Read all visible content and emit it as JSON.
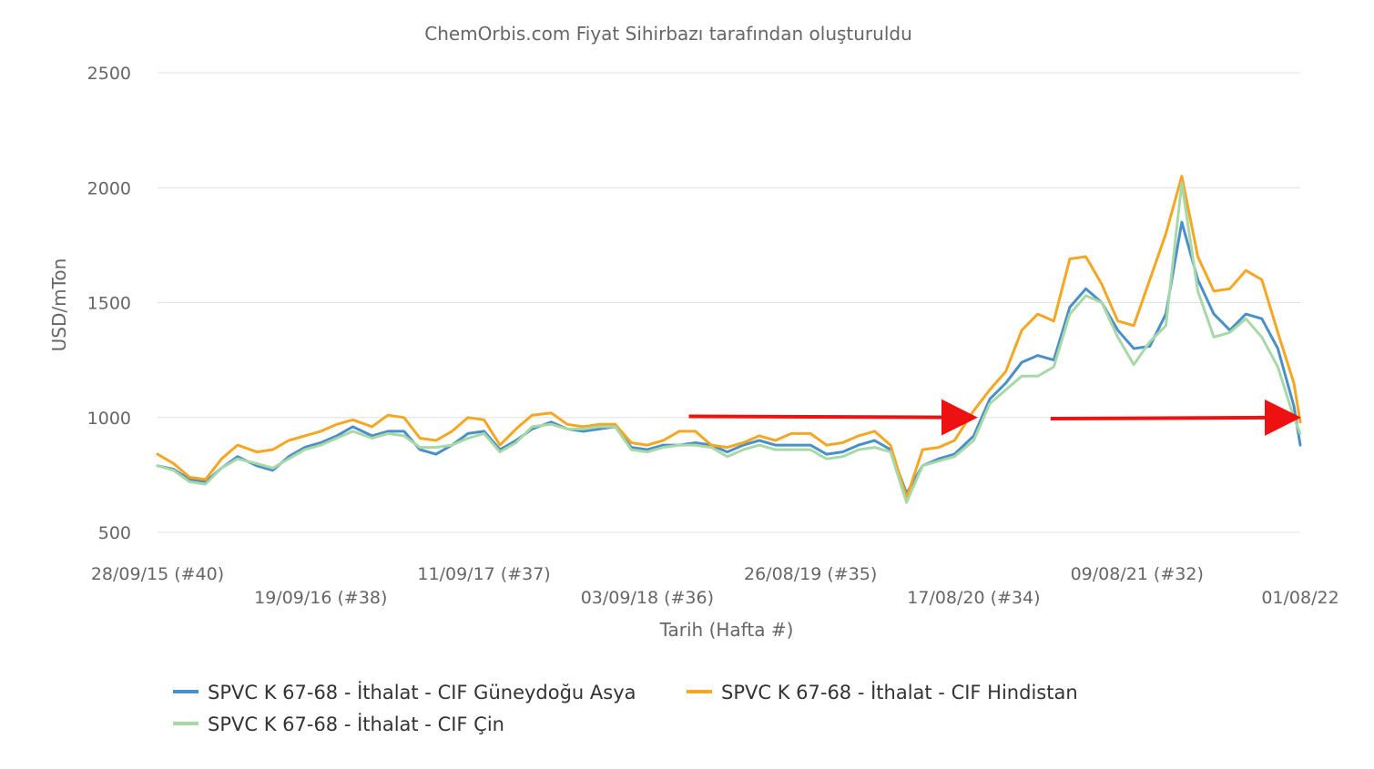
{
  "chart_data": {
    "type": "line",
    "title": "ChemOrbis.com Fiyat Sihirbazı tarafından oluşturuldu",
    "xlabel": "Tarih (Hafta #)",
    "ylabel": "USD/mTon",
    "ylim": [
      500,
      2500
    ],
    "yticks": [
      500,
      1000,
      1500,
      2000,
      2500
    ],
    "xlim": [
      "2015-09-28",
      "2022-08-01"
    ],
    "xticks": [
      {
        "label": "28/09/15 (#40)",
        "date": "2015-09-28"
      },
      {
        "label": "19/09/16 (#38)",
        "date": "2016-09-19"
      },
      {
        "label": "11/09/17 (#37)",
        "date": "2017-09-11"
      },
      {
        "label": "03/09/18 (#36)",
        "date": "2018-09-03"
      },
      {
        "label": "26/08/19 (#35)",
        "date": "2019-08-26"
      },
      {
        "label": "17/08/20 (#34)",
        "date": "2020-08-17"
      },
      {
        "label": "09/08/21 (#32)",
        "date": "2021-08-09"
      },
      {
        "label": "01/08/22",
        "date": "2022-08-01"
      }
    ],
    "grid": true,
    "legend_position": "bottom",
    "series": [
      {
        "name": "SPVC K 67-68 - İthalat - CIF Güneydoğu Asya",
        "color": "#4a90c8",
        "points": [
          [
            "2015-09-28",
            790
          ],
          [
            "2015-11-02",
            775
          ],
          [
            "2015-12-07",
            730
          ],
          [
            "2016-01-11",
            720
          ],
          [
            "2016-02-15",
            780
          ],
          [
            "2016-03-21",
            830
          ],
          [
            "2016-05-02",
            790
          ],
          [
            "2016-06-06",
            770
          ],
          [
            "2016-07-11",
            830
          ],
          [
            "2016-08-15",
            870
          ],
          [
            "2016-09-19",
            890
          ],
          [
            "2016-10-24",
            920
          ],
          [
            "2016-11-28",
            960
          ],
          [
            "2017-01-09",
            920
          ],
          [
            "2017-02-13",
            940
          ],
          [
            "2017-03-20",
            940
          ],
          [
            "2017-04-24",
            860
          ],
          [
            "2017-05-29",
            840
          ],
          [
            "2017-07-03",
            880
          ],
          [
            "2017-08-07",
            930
          ],
          [
            "2017-09-11",
            940
          ],
          [
            "2017-10-16",
            860
          ],
          [
            "2017-11-20",
            900
          ],
          [
            "2017-12-25",
            950
          ],
          [
            "2018-02-05",
            980
          ],
          [
            "2018-03-12",
            950
          ],
          [
            "2018-04-16",
            940
          ],
          [
            "2018-05-21",
            950
          ],
          [
            "2018-06-25",
            960
          ],
          [
            "2018-07-30",
            870
          ],
          [
            "2018-09-03",
            860
          ],
          [
            "2018-10-08",
            880
          ],
          [
            "2018-11-12",
            880
          ],
          [
            "2018-12-17",
            890
          ],
          [
            "2019-01-21",
            880
          ],
          [
            "2019-02-25",
            850
          ],
          [
            "2019-04-01",
            880
          ],
          [
            "2019-05-06",
            900
          ],
          [
            "2019-06-10",
            880
          ],
          [
            "2019-07-15",
            880
          ],
          [
            "2019-08-26",
            880
          ],
          [
            "2019-09-30",
            840
          ],
          [
            "2019-11-04",
            850
          ],
          [
            "2019-12-09",
            880
          ],
          [
            "2020-01-13",
            900
          ],
          [
            "2020-02-17",
            860
          ],
          [
            "2020-03-23",
            670
          ],
          [
            "2020-04-27",
            790
          ],
          [
            "2020-06-01",
            820
          ],
          [
            "2020-07-06",
            840
          ],
          [
            "2020-08-17",
            920
          ],
          [
            "2020-09-21",
            1080
          ],
          [
            "2020-10-26",
            1150
          ],
          [
            "2020-11-30",
            1240
          ],
          [
            "2021-01-04",
            1270
          ],
          [
            "2021-02-08",
            1250
          ],
          [
            "2021-03-15",
            1480
          ],
          [
            "2021-04-19",
            1560
          ],
          [
            "2021-05-24",
            1500
          ],
          [
            "2021-06-28",
            1380
          ],
          [
            "2021-08-02",
            1300
          ],
          [
            "2021-09-06",
            1310
          ],
          [
            "2021-10-11",
            1450
          ],
          [
            "2021-11-15",
            1850
          ],
          [
            "2021-12-20",
            1600
          ],
          [
            "2022-01-24",
            1450
          ],
          [
            "2022-02-28",
            1380
          ],
          [
            "2022-04-04",
            1450
          ],
          [
            "2022-05-09",
            1430
          ],
          [
            "2022-06-13",
            1300
          ],
          [
            "2022-07-18",
            1050
          ],
          [
            "2022-08-01",
            880
          ]
        ]
      },
      {
        "name": "SPVC K 67-68 - İthalat - CIF Hindistan",
        "color": "#f5a623",
        "points": [
          [
            "2015-09-28",
            840
          ],
          [
            "2015-11-02",
            800
          ],
          [
            "2015-12-07",
            740
          ],
          [
            "2016-01-11",
            730
          ],
          [
            "2016-02-15",
            820
          ],
          [
            "2016-03-21",
            880
          ],
          [
            "2016-05-02",
            850
          ],
          [
            "2016-06-06",
            860
          ],
          [
            "2016-07-11",
            900
          ],
          [
            "2016-08-15",
            920
          ],
          [
            "2016-09-19",
            940
          ],
          [
            "2016-10-24",
            970
          ],
          [
            "2016-11-28",
            990
          ],
          [
            "2017-01-09",
            960
          ],
          [
            "2017-02-13",
            1010
          ],
          [
            "2017-03-20",
            1000
          ],
          [
            "2017-04-24",
            910
          ],
          [
            "2017-05-29",
            900
          ],
          [
            "2017-07-03",
            940
          ],
          [
            "2017-08-07",
            1000
          ],
          [
            "2017-09-11",
            990
          ],
          [
            "2017-10-16",
            880
          ],
          [
            "2017-11-20",
            950
          ],
          [
            "2017-12-25",
            1010
          ],
          [
            "2018-02-05",
            1020
          ],
          [
            "2018-03-12",
            970
          ],
          [
            "2018-04-16",
            960
          ],
          [
            "2018-05-21",
            970
          ],
          [
            "2018-06-25",
            970
          ],
          [
            "2018-07-30",
            890
          ],
          [
            "2018-09-03",
            880
          ],
          [
            "2018-10-08",
            900
          ],
          [
            "2018-11-12",
            940
          ],
          [
            "2018-12-17",
            940
          ],
          [
            "2019-01-21",
            880
          ],
          [
            "2019-02-25",
            870
          ],
          [
            "2019-04-01",
            890
          ],
          [
            "2019-05-06",
            920
          ],
          [
            "2019-06-10",
            900
          ],
          [
            "2019-07-15",
            930
          ],
          [
            "2019-08-26",
            930
          ],
          [
            "2019-09-30",
            880
          ],
          [
            "2019-11-04",
            890
          ],
          [
            "2019-12-09",
            920
          ],
          [
            "2020-01-13",
            940
          ],
          [
            "2020-02-17",
            880
          ],
          [
            "2020-03-23",
            650
          ],
          [
            "2020-04-27",
            860
          ],
          [
            "2020-06-01",
            870
          ],
          [
            "2020-07-06",
            900
          ],
          [
            "2020-08-17",
            1030
          ],
          [
            "2020-09-21",
            1120
          ],
          [
            "2020-10-26",
            1200
          ],
          [
            "2020-11-30",
            1380
          ],
          [
            "2021-01-04",
            1450
          ],
          [
            "2021-02-08",
            1420
          ],
          [
            "2021-03-15",
            1690
          ],
          [
            "2021-04-19",
            1700
          ],
          [
            "2021-05-24",
            1580
          ],
          [
            "2021-06-28",
            1420
          ],
          [
            "2021-08-02",
            1400
          ],
          [
            "2021-09-06",
            1600
          ],
          [
            "2021-10-11",
            1800
          ],
          [
            "2021-11-15",
            2050
          ],
          [
            "2021-12-20",
            1700
          ],
          [
            "2022-01-24",
            1550
          ],
          [
            "2022-02-28",
            1560
          ],
          [
            "2022-04-04",
            1640
          ],
          [
            "2022-05-09",
            1600
          ],
          [
            "2022-06-13",
            1370
          ],
          [
            "2022-07-18",
            1150
          ],
          [
            "2022-08-01",
            980
          ]
        ]
      },
      {
        "name": "SPVC K 67-68 - İthalat - CIF Çin",
        "color": "#a8d8a8",
        "points": [
          [
            "2015-09-28",
            790
          ],
          [
            "2015-11-02",
            770
          ],
          [
            "2015-12-07",
            720
          ],
          [
            "2016-01-11",
            710
          ],
          [
            "2016-02-15",
            780
          ],
          [
            "2016-03-21",
            820
          ],
          [
            "2016-05-02",
            800
          ],
          [
            "2016-06-06",
            780
          ],
          [
            "2016-07-11",
            820
          ],
          [
            "2016-08-15",
            860
          ],
          [
            "2016-09-19",
            880
          ],
          [
            "2016-10-24",
            910
          ],
          [
            "2016-11-28",
            940
          ],
          [
            "2017-01-09",
            910
          ],
          [
            "2017-02-13",
            930
          ],
          [
            "2017-03-20",
            920
          ],
          [
            "2017-04-24",
            870
          ],
          [
            "2017-05-29",
            870
          ],
          [
            "2017-07-03",
            880
          ],
          [
            "2017-08-07",
            910
          ],
          [
            "2017-09-11",
            930
          ],
          [
            "2017-10-16",
            850
          ],
          [
            "2017-11-20",
            890
          ],
          [
            "2017-12-25",
            960
          ],
          [
            "2018-02-05",
            970
          ],
          [
            "2018-03-12",
            950
          ],
          [
            "2018-04-16",
            950
          ],
          [
            "2018-05-21",
            960
          ],
          [
            "2018-06-25",
            960
          ],
          [
            "2018-07-30",
            860
          ],
          [
            "2018-09-03",
            850
          ],
          [
            "2018-10-08",
            870
          ],
          [
            "2018-11-12",
            880
          ],
          [
            "2018-12-17",
            880
          ],
          [
            "2019-01-21",
            870
          ],
          [
            "2019-02-25",
            830
          ],
          [
            "2019-04-01",
            860
          ],
          [
            "2019-05-06",
            880
          ],
          [
            "2019-06-10",
            860
          ],
          [
            "2019-07-15",
            860
          ],
          [
            "2019-08-26",
            860
          ],
          [
            "2019-09-30",
            820
          ],
          [
            "2019-11-04",
            830
          ],
          [
            "2019-12-09",
            860
          ],
          [
            "2020-01-13",
            870
          ],
          [
            "2020-02-17",
            850
          ],
          [
            "2020-03-23",
            630
          ],
          [
            "2020-04-27",
            790
          ],
          [
            "2020-06-01",
            810
          ],
          [
            "2020-07-06",
            830
          ],
          [
            "2020-08-17",
            900
          ],
          [
            "2020-09-21",
            1060
          ],
          [
            "2020-10-26",
            1120
          ],
          [
            "2020-11-30",
            1180
          ],
          [
            "2021-01-04",
            1180
          ],
          [
            "2021-02-08",
            1220
          ],
          [
            "2021-03-15",
            1450
          ],
          [
            "2021-04-19",
            1530
          ],
          [
            "2021-05-24",
            1500
          ],
          [
            "2021-06-28",
            1350
          ],
          [
            "2021-08-02",
            1230
          ],
          [
            "2021-09-06",
            1330
          ],
          [
            "2021-10-11",
            1400
          ],
          [
            "2021-11-15",
            2020
          ],
          [
            "2021-12-20",
            1550
          ],
          [
            "2022-01-24",
            1350
          ],
          [
            "2022-02-28",
            1370
          ],
          [
            "2022-04-04",
            1430
          ],
          [
            "2022-05-09",
            1350
          ],
          [
            "2022-06-13",
            1220
          ],
          [
            "2022-07-18",
            1000
          ],
          [
            "2022-08-01",
            930
          ]
        ]
      }
    ],
    "annotations": [
      {
        "type": "arrow",
        "color": "#ee1111",
        "x_from": "2018-12-03",
        "x_to": "2020-08-10",
        "y_from": 1005,
        "y_to": 1000
      },
      {
        "type": "arrow",
        "color": "#ee1111",
        "x_from": "2021-02-01",
        "x_to": "2022-07-18",
        "y_from": 995,
        "y_to": 1000
      }
    ]
  }
}
